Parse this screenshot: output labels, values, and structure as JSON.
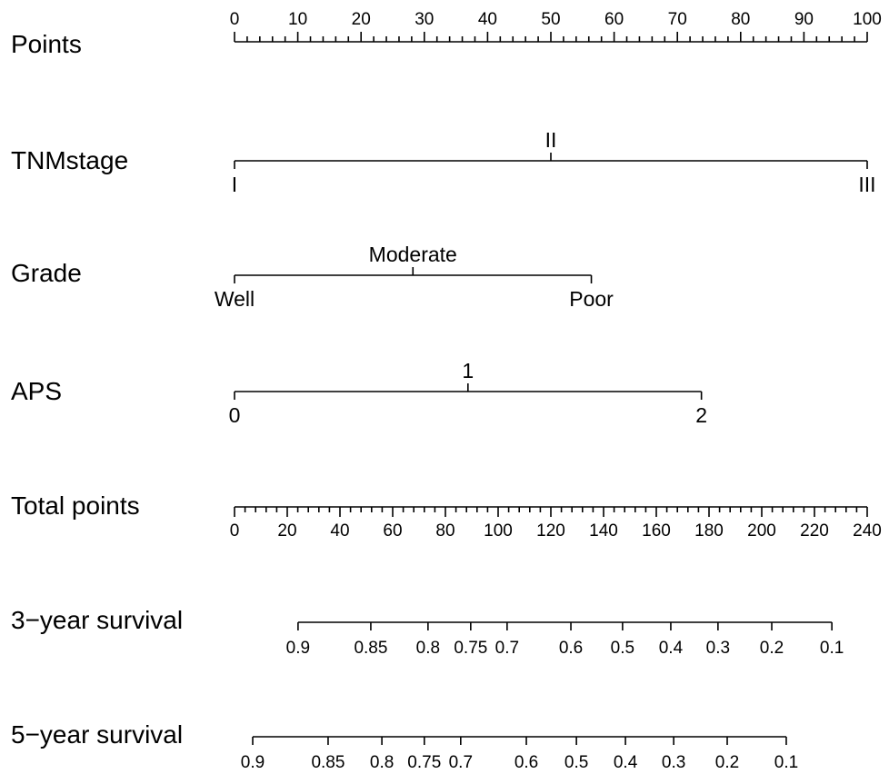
{
  "chart_data": {
    "type": "nomogram",
    "rows": [
      {
        "name": "Points",
        "kind": "axis",
        "range": [
          0,
          100
        ],
        "major_ticks": [
          0,
          10,
          20,
          30,
          40,
          50,
          60,
          70,
          80,
          90,
          100
        ],
        "minor_step": 2,
        "label_side": "above"
      },
      {
        "name": "TNMstage",
        "kind": "categorical",
        "levels": [
          {
            "label": "I",
            "points": 0,
            "side": "below"
          },
          {
            "label": "II",
            "points": 50,
            "side": "above"
          },
          {
            "label": "III",
            "points": 100,
            "side": "below"
          }
        ]
      },
      {
        "name": "Grade",
        "kind": "categorical",
        "levels": [
          {
            "label": "Well",
            "points": 0,
            "side": "below"
          },
          {
            "label": "Moderate",
            "points": 28.2,
            "side": "above"
          },
          {
            "label": "Poor",
            "points": 56.4,
            "side": "below"
          }
        ]
      },
      {
        "name": "APS",
        "kind": "categorical",
        "levels": [
          {
            "label": "0",
            "points": 0,
            "side": "below"
          },
          {
            "label": "1",
            "points": 36.9,
            "side": "above"
          },
          {
            "label": "2",
            "points": 73.8,
            "side": "below"
          }
        ]
      },
      {
        "name": "Total points",
        "kind": "axis",
        "range": [
          0,
          240
        ],
        "major_ticks": [
          0,
          20,
          40,
          60,
          80,
          100,
          120,
          140,
          160,
          180,
          200,
          220,
          240
        ],
        "minor_step": 4,
        "label_side": "below"
      },
      {
        "name": "3−year survival",
        "kind": "survival",
        "ticks": [
          {
            "label": "0.9",
            "total_points": 24.1
          },
          {
            "label": "0.85",
            "total_points": 51.7
          },
          {
            "label": "0.8",
            "total_points": 73.4
          },
          {
            "label": "0.75",
            "total_points": 89.6
          },
          {
            "label": "0.7",
            "total_points": 103.4
          },
          {
            "label": "0.6",
            "total_points": 127.6
          },
          {
            "label": "0.5",
            "total_points": 147.2
          },
          {
            "label": "0.4",
            "total_points": 165.5
          },
          {
            "label": "0.3",
            "total_points": 183.4
          },
          {
            "label": "0.2",
            "total_points": 203.8
          },
          {
            "label": "0.1",
            "total_points": 226.6
          }
        ]
      },
      {
        "name": "5−year survival",
        "kind": "survival",
        "ticks": [
          {
            "label": "0.9",
            "total_points": 6.9
          },
          {
            "label": "0.85",
            "total_points": 35.5
          },
          {
            "label": "0.8",
            "total_points": 55.9
          },
          {
            "label": "0.75",
            "total_points": 72.0
          },
          {
            "label": "0.7",
            "total_points": 85.8
          },
          {
            "label": "0.6",
            "total_points": 110.7
          },
          {
            "label": "0.5",
            "total_points": 129.7
          },
          {
            "label": "0.4",
            "total_points": 148.3
          },
          {
            "label": "0.3",
            "total_points": 166.6
          },
          {
            "label": "0.2",
            "total_points": 186.9
          },
          {
            "label": "0.1",
            "total_points": 209.3
          }
        ]
      }
    ]
  }
}
